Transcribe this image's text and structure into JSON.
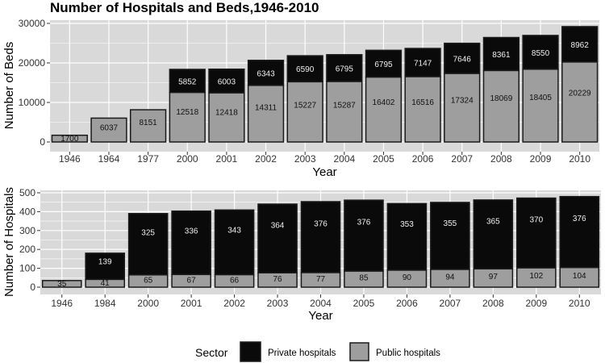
{
  "title": "Number of Hospitals and Beds,1946-2010",
  "colors": {
    "private": "#0a0a0a",
    "public": "#9e9e9e",
    "panel": "#d9d9d9",
    "grid": "#ffffff",
    "outline": "#1a1a1a"
  },
  "legend": {
    "title": "Sector",
    "items": [
      {
        "label": "Private hospitals",
        "key": "private"
      },
      {
        "label": "Public hospitals",
        "key": "public"
      }
    ],
    "placement": "bottom"
  },
  "chart_data": [
    {
      "type": "bar",
      "stacked": true,
      "title": "Number of Hospitals and Beds,1946-2010",
      "xlabel": "Year",
      "ylabel": "Number of Beds",
      "ylim": [
        0,
        30000
      ],
      "yticks": [
        0,
        10000,
        20000,
        30000
      ],
      "ytick_labels": [
        "0",
        "10000",
        "20000",
        "30000"
      ],
      "grid": true,
      "categories": [
        "1946",
        "1964",
        "1977",
        "2000",
        "2001",
        "2002",
        "2003",
        "2004",
        "2005",
        "2006",
        "2007",
        "2008",
        "2009",
        "2010"
      ],
      "series": [
        {
          "name": "Public hospitals",
          "key": "public",
          "values": [
            1700,
            6037,
            8151,
            12518,
            12418,
            14311,
            15227,
            15287,
            16402,
            16516,
            17324,
            18069,
            18405,
            20229
          ]
        },
        {
          "name": "Private hospitals",
          "key": "private",
          "values": [
            null,
            null,
            null,
            5852,
            6003,
            6343,
            6590,
            6795,
            6795,
            7147,
            7646,
            8361,
            8550,
            8962
          ]
        }
      ],
      "data_labels": {
        "public": [
          "1700",
          "6037",
          "8151",
          "12518",
          "12418",
          "14311",
          "15227",
          "15287",
          "16402",
          "16516",
          "17324",
          "18069",
          "18405",
          "20229"
        ],
        "private": [
          "",
          "",
          "",
          "5852",
          "6003",
          "6343",
          "6590",
          "6795",
          "6795",
          "7147",
          "7646",
          "8361",
          "8550",
          "8962"
        ]
      }
    },
    {
      "type": "bar",
      "stacked": true,
      "xlabel": "Year",
      "ylabel": "Number of Hospitals",
      "ylim": [
        0,
        500
      ],
      "yticks": [
        0,
        100,
        200,
        300,
        400,
        500
      ],
      "ytick_labels": [
        "0",
        "100",
        "200",
        "300",
        "400",
        "500"
      ],
      "grid": true,
      "categories": [
        "1946",
        "1984",
        "2000",
        "2001",
        "2002",
        "2003",
        "2004",
        "2005",
        "2006",
        "2007",
        "2008",
        "2009",
        "2010"
      ],
      "series": [
        {
          "name": "Public hospitals",
          "key": "public",
          "values": [
            35,
            41,
            65,
            67,
            66,
            76,
            77,
            85,
            90,
            94,
            97,
            102,
            104
          ]
        },
        {
          "name": "Private hospitals",
          "key": "private",
          "values": [
            null,
            139,
            325,
            336,
            343,
            364,
            376,
            376,
            353,
            355,
            365,
            370,
            376
          ]
        }
      ],
      "data_labels": {
        "public": [
          "35",
          "41",
          "65",
          "67",
          "66",
          "76",
          "77",
          "85",
          "90",
          "94",
          "97",
          "102",
          "104"
        ],
        "private": [
          "",
          "139",
          "325",
          "336",
          "343",
          "364",
          "376",
          "376",
          "353",
          "355",
          "365",
          "370",
          "376"
        ]
      }
    }
  ]
}
